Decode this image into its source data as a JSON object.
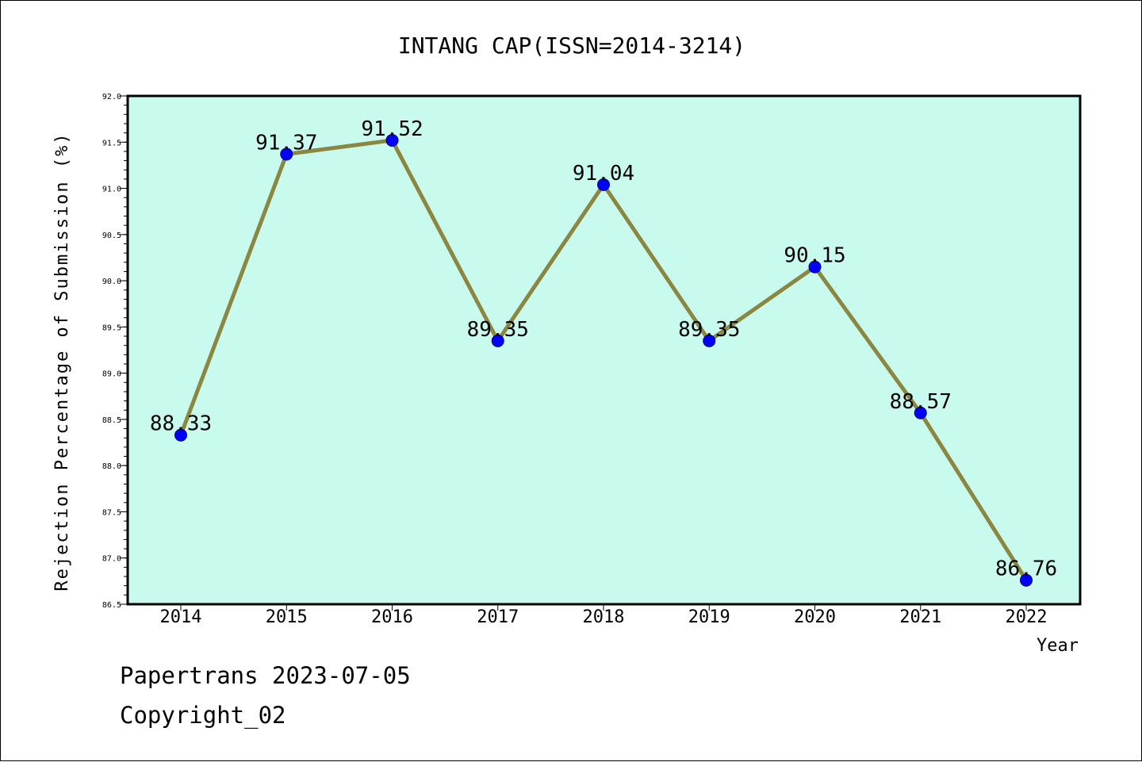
{
  "chart_data": {
    "type": "line",
    "title": "INTANG CAP(ISSN=2014-3214)",
    "xlabel": "Year",
    "ylabel": "Rejection Percentage of Submission (%)",
    "categories": [
      "2014",
      "2015",
      "2016",
      "2017",
      "2018",
      "2019",
      "2020",
      "2021",
      "2022"
    ],
    "values": [
      88.33,
      91.37,
      91.52,
      89.35,
      91.04,
      89.35,
      90.15,
      88.57,
      86.76
    ],
    "data_labels": [
      "88.33",
      "91.37",
      "91.52",
      "89.35",
      "91.04",
      "89.35",
      "90.15",
      "88.57",
      "86.76"
    ],
    "ylim": [
      86.5,
      92.0
    ],
    "yticks": [
      "86.5",
      "87.0",
      "87.5",
      "88.0",
      "88.5",
      "89.0",
      "89.5",
      "90.0",
      "90.5",
      "91.0",
      "91.5",
      "92.0"
    ],
    "grid": false,
    "colors": {
      "plot_background": "#c8fbee",
      "line": "#8b8640",
      "marker": "#0000ff",
      "marker_edge": "#000080"
    }
  },
  "footer": {
    "line1": "Papertrans 2023-07-05",
    "line2": "Copyright_02"
  }
}
